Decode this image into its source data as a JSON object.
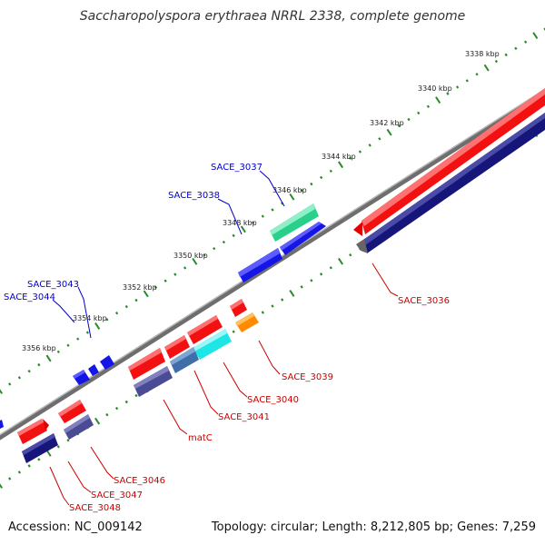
{
  "title": "Saccharopolyspora erythraea NRRL 2338, complete genome",
  "footer": {
    "accession": "Accession: NC_009142",
    "summary": "Topology: circular; Length: 8,212,805 bp; Genes: 7,259"
  },
  "colors": {
    "backbone": "#888888",
    "tick": "#2a8a2a",
    "forward_label": "#0000cc",
    "reverse_label": "#cc0000",
    "red": "#ff1a1a",
    "navy": "#1a1a80",
    "blue": "#1a1aff",
    "green": "#33cc8c",
    "cyan": "#33e6e6",
    "orange": "#ff9900",
    "slate": "#4f4f9a",
    "steel": "#4a7fb5"
  },
  "scale_labels": [
    "3338 kbp",
    "3340 kbp",
    "3342 kbp",
    "3344 kbp",
    "3346 kbp",
    "3348 kbp",
    "3350 kbp",
    "3352 kbp",
    "3354 kbp",
    "3356 kbp"
  ],
  "forward_labels": [
    "SACE_3037",
    "SACE_3038",
    "SACE_3043",
    "SACE_3044"
  ],
  "reverse_labels": [
    "SACE_3036",
    "SACE_3039",
    "SACE_3040",
    "SACE_3041",
    "matC",
    "SACE_3046",
    "SACE_3047",
    "SACE_3048"
  ]
}
